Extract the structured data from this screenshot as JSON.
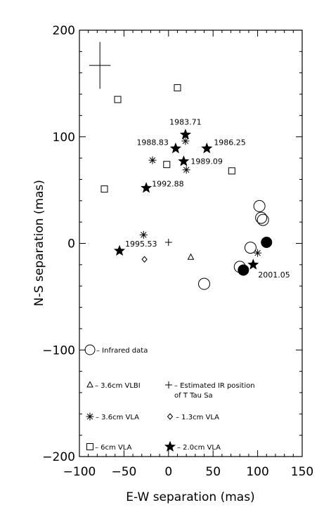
{
  "chart_data": {
    "type": "scatter",
    "xlabel": "E-W separation (mas)",
    "ylabel": "N-S separation (mas)",
    "xlim": [
      -100,
      150
    ],
    "ylim": [
      -200,
      200
    ],
    "xticks": [
      -100,
      -50,
      0,
      50,
      100,
      150
    ],
    "yticks": [
      -200,
      -100,
      0,
      100,
      200
    ],
    "xtick_labels": [
      "−100",
      "−50",
      "0",
      "50",
      "100",
      "150"
    ],
    "ytick_labels": [
      "−200",
      "−100",
      "0",
      "100",
      "200"
    ],
    "error_bar": {
      "x": -77,
      "y": 167,
      "dx": 12,
      "dy": 22
    },
    "series": [
      {
        "key": "vla20",
        "name": "2.0cm VLA",
        "marker": "filled-star",
        "points": [
          {
            "x": 19,
            "y": 102,
            "label": "1983.71"
          },
          {
            "x": 43,
            "y": 89,
            "label": "1986.25"
          },
          {
            "x": 8,
            "y": 89,
            "label": "1988.83"
          },
          {
            "x": 17,
            "y": 77,
            "label": "1989.09"
          },
          {
            "x": -25,
            "y": 52,
            "label": "1992.88"
          },
          {
            "x": -55,
            "y": -7,
            "label": "1995.53"
          },
          {
            "x": 95,
            "y": -20,
            "label": "2001.05"
          }
        ]
      },
      {
        "key": "vla6",
        "name": "6cm VLA",
        "marker": "open-square",
        "points": [
          {
            "x": -57,
            "y": 135
          },
          {
            "x": 10,
            "y": 146
          },
          {
            "x": -2,
            "y": 74
          },
          {
            "x": 71,
            "y": 68
          },
          {
            "x": -72,
            "y": 51
          }
        ]
      },
      {
        "key": "vla36",
        "name": "3.6cm VLA",
        "marker": "asterisk",
        "points": [
          {
            "x": 19,
            "y": 96
          },
          {
            "x": -18,
            "y": 78
          },
          {
            "x": 20,
            "y": 69
          },
          {
            "x": -28,
            "y": 8
          },
          {
            "x": 100,
            "y": -9
          }
        ]
      },
      {
        "key": "vla13",
        "name": "1.3cm VLA",
        "marker": "open-diamond",
        "points": [
          {
            "x": -27,
            "y": -15
          }
        ]
      },
      {
        "key": "vlbi36",
        "name": "3.6cm VLBI",
        "marker": "open-triangle",
        "points": [
          {
            "x": 25,
            "y": -13
          }
        ]
      },
      {
        "key": "ir_est",
        "name": "Estimated IR position of T Tau Sa",
        "marker": "plus",
        "points": [
          {
            "x": 0,
            "y": 1
          }
        ]
      },
      {
        "key": "ir_open",
        "name": "Infrared data",
        "marker": "open-circle",
        "points": [
          {
            "x": 40,
            "y": -38
          },
          {
            "x": 80,
            "y": -22
          },
          {
            "x": 92,
            "y": -4
          },
          {
            "x": 102,
            "y": 35
          },
          {
            "x": 104,
            "y": 24
          },
          {
            "x": 106,
            "y": 22
          }
        ]
      },
      {
        "key": "ir_filled",
        "name": "",
        "marker": "filled-circle",
        "points": [
          {
            "x": 84,
            "y": -25
          },
          {
            "x": 110,
            "y": 1
          }
        ]
      }
    ],
    "legend": [
      {
        "marker": "open-circle",
        "text": "– Infrared data"
      },
      {
        "marker": "open-triangle",
        "text": "– 3.6cm VLBI"
      },
      {
        "marker": "plus",
        "text": "– Estimated IR position"
      },
      {
        "marker": "",
        "text": "of T Tau Sa"
      },
      {
        "marker": "asterisk",
        "text": "– 3.6cm VLA"
      },
      {
        "marker": "open-diamond",
        "text": "– 1.3cm VLA"
      },
      {
        "marker": "open-square",
        "text": "– 6cm VLA"
      },
      {
        "marker": "filled-star",
        "text": "– 2.0cm VLA"
      }
    ],
    "grid": false
  }
}
